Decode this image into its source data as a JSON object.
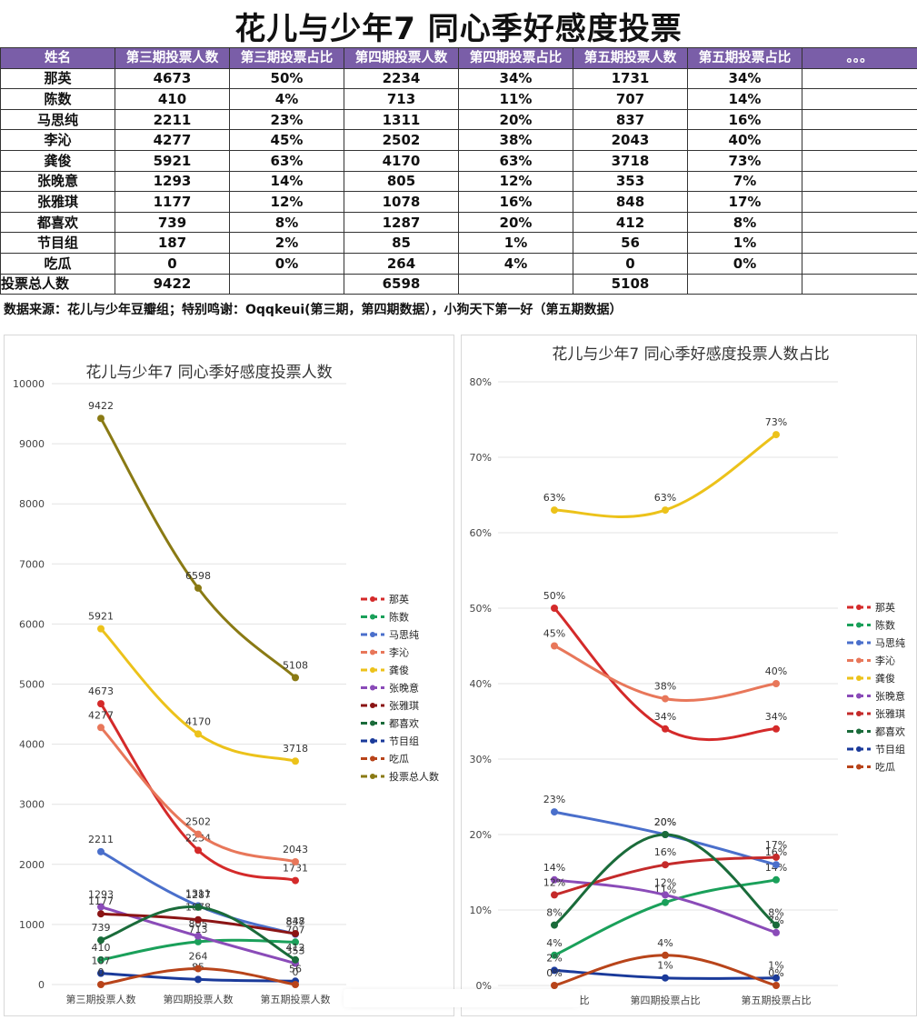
{
  "title": "花儿与少年7 同心季好感度投票",
  "table": {
    "headers": [
      "姓名",
      "第三期投票人数",
      "第三期投票占比",
      "第四期投票人数",
      "第四期投票占比",
      "第五期投票人数",
      "第五期投票占比",
      "。。。"
    ],
    "rows": [
      [
        "那英",
        "4673",
        "50%",
        "2234",
        "34%",
        "1731",
        "34%",
        ""
      ],
      [
        "陈数",
        "410",
        "4%",
        "713",
        "11%",
        "707",
        "14%",
        ""
      ],
      [
        "马思纯",
        "2211",
        "23%",
        "1311",
        "20%",
        "837",
        "16%",
        ""
      ],
      [
        "李沁",
        "4277",
        "45%",
        "2502",
        "38%",
        "2043",
        "40%",
        ""
      ],
      [
        "龚俊",
        "5921",
        "63%",
        "4170",
        "63%",
        "3718",
        "73%",
        ""
      ],
      [
        "张晚意",
        "1293",
        "14%",
        "805",
        "12%",
        "353",
        "7%",
        ""
      ],
      [
        "张雅琪",
        "1177",
        "12%",
        "1078",
        "16%",
        "848",
        "17%",
        ""
      ],
      [
        "都喜欢",
        "739",
        "8%",
        "1287",
        "20%",
        "412",
        "8%",
        ""
      ],
      [
        "节目组",
        "187",
        "2%",
        "85",
        "1%",
        "56",
        "1%",
        ""
      ],
      [
        "吃瓜",
        "0",
        "0%",
        "264",
        "4%",
        "0",
        "0%",
        ""
      ],
      [
        "投票总人数",
        "9422",
        "",
        "6598",
        "",
        "5108",
        "",
        ""
      ]
    ]
  },
  "source_note": "数据来源：花儿与少年豆瓣组；特别鸣谢：Oqqkeui(第三期，第四期数据），小狗天下第一好（第五期数据）",
  "chart_data": [
    {
      "type": "line",
      "title": "花儿与少年7 同心季好感度投票人数",
      "categories": [
        "第三期投票人数",
        "第四期投票人数",
        "第五期投票人数"
      ],
      "ylim": [
        0,
        10000
      ],
      "yticks": [
        0,
        1000,
        2000,
        3000,
        4000,
        5000,
        6000,
        7000,
        8000,
        9000,
        10000
      ],
      "grid": true,
      "legend": "right",
      "series": [
        {
          "name": "那英",
          "color": "#d42a2a",
          "values": [
            4673,
            2234,
            1731
          ]
        },
        {
          "name": "陈数",
          "color": "#1aa05a",
          "values": [
            410,
            713,
            707
          ]
        },
        {
          "name": "马思纯",
          "color": "#4a6fcb",
          "values": [
            2211,
            1311,
            837
          ]
        },
        {
          "name": "李沁",
          "color": "#e8775a",
          "values": [
            4277,
            2502,
            2043
          ]
        },
        {
          "name": "龚俊",
          "color": "#ecc21a",
          "values": [
            5921,
            4170,
            3718
          ]
        },
        {
          "name": "张晚意",
          "color": "#8a4bb8",
          "values": [
            1293,
            805,
            353
          ]
        },
        {
          "name": "张雅琪",
          "color": "#8b1414",
          "values": [
            1177,
            1078,
            848
          ]
        },
        {
          "name": "都喜欢",
          "color": "#1a6b3a",
          "values": [
            739,
            1287,
            412
          ]
        },
        {
          "name": "节目组",
          "color": "#1a3a9a",
          "values": [
            187,
            85,
            56
          ]
        },
        {
          "name": "吃瓜",
          "color": "#b8441a",
          "values": [
            0,
            264,
            0
          ]
        },
        {
          "name": "投票总人数",
          "color": "#8a7a14",
          "values": [
            9422,
            6598,
            5108
          ]
        }
      ]
    },
    {
      "type": "line",
      "title": "花儿与少年7 同心季好感度投票人数占比",
      "categories": [
        "第三期投票占比",
        "第四期投票占比",
        "第五期投票占比"
      ],
      "ylim": [
        0,
        80
      ],
      "yticks": [
        0,
        10,
        20,
        30,
        40,
        50,
        60,
        70,
        80
      ],
      "ytick_suffix": "%",
      "grid": true,
      "legend": "right",
      "series": [
        {
          "name": "那英",
          "color": "#d42a2a",
          "values": [
            50,
            34,
            34
          ]
        },
        {
          "name": "陈数",
          "color": "#1aa05a",
          "values": [
            4,
            11,
            14
          ]
        },
        {
          "name": "马思纯",
          "color": "#4a6fcb",
          "values": [
            23,
            20,
            16
          ]
        },
        {
          "name": "李沁",
          "color": "#e8775a",
          "values": [
            45,
            38,
            40
          ]
        },
        {
          "name": "龚俊",
          "color": "#ecc21a",
          "values": [
            63,
            63,
            73
          ]
        },
        {
          "name": "张晚意",
          "color": "#8a4bb8",
          "values": [
            14,
            12,
            7
          ]
        },
        {
          "name": "张雅琪",
          "color": "#c42a2a",
          "values": [
            12,
            16,
            17
          ]
        },
        {
          "name": "都喜欢",
          "color": "#1a6b3a",
          "values": [
            8,
            20,
            8
          ]
        },
        {
          "name": "节目组",
          "color": "#1a3a9a",
          "values": [
            2,
            1,
            1
          ]
        },
        {
          "name": "吃瓜",
          "color": "#b8441a",
          "values": [
            0,
            4,
            0
          ]
        }
      ]
    }
  ]
}
